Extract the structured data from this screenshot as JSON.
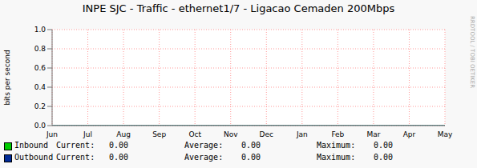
{
  "chart_data": {
    "type": "line",
    "title": "INPE SJC - Traffic - ethernet1/7 - Ligacao Cemaden 200Mbps",
    "y_label": "bits per second",
    "annotations": [
      "RRDTOOL / TOBI OETIKER"
    ],
    "categories": [
      "Jun",
      "Jul",
      "Aug",
      "Sep",
      "Oct",
      "Nov",
      "Dec",
      "Jan",
      "Feb",
      "Mar",
      "Apr",
      "May"
    ],
    "series": [
      {
        "name": "Inbound",
        "color": "#00cc00",
        "values": [
          0,
          0,
          0,
          0,
          0,
          0,
          0,
          0,
          0,
          0,
          0,
          0
        ],
        "stats": [
          {
            "name": "Current:",
            "value": 0,
            "label": "0.00"
          },
          {
            "name": "Average:",
            "value": 0,
            "label": "0.00"
          },
          {
            "name": "Maximum:",
            "value": 0,
            "label": "0.00"
          }
        ]
      },
      {
        "name": "Outbound",
        "color": "#002a97",
        "values": [
          0,
          0,
          0,
          0,
          0,
          0,
          0,
          0,
          0,
          0,
          0,
          0
        ],
        "stats": [
          {
            "name": "Current:",
            "value": 0,
            "label": "0.00"
          },
          {
            "name": "Average:",
            "value": 0,
            "label": "0.00"
          },
          {
            "name": "Maximum:",
            "value": 0,
            "label": "0.00"
          }
        ]
      }
    ],
    "ylim": [
      0,
      1
    ],
    "yticks": [
      {
        "value": 0,
        "label": "0.0"
      },
      {
        "value": 0.2,
        "label": "0.2"
      },
      {
        "value": 0.4,
        "label": "0.4"
      },
      {
        "value": 0.6,
        "label": "0.6"
      },
      {
        "value": 0.8,
        "label": "0.8"
      },
      {
        "value": 1,
        "label": "1.0"
      }
    ],
    "grid": true
  }
}
